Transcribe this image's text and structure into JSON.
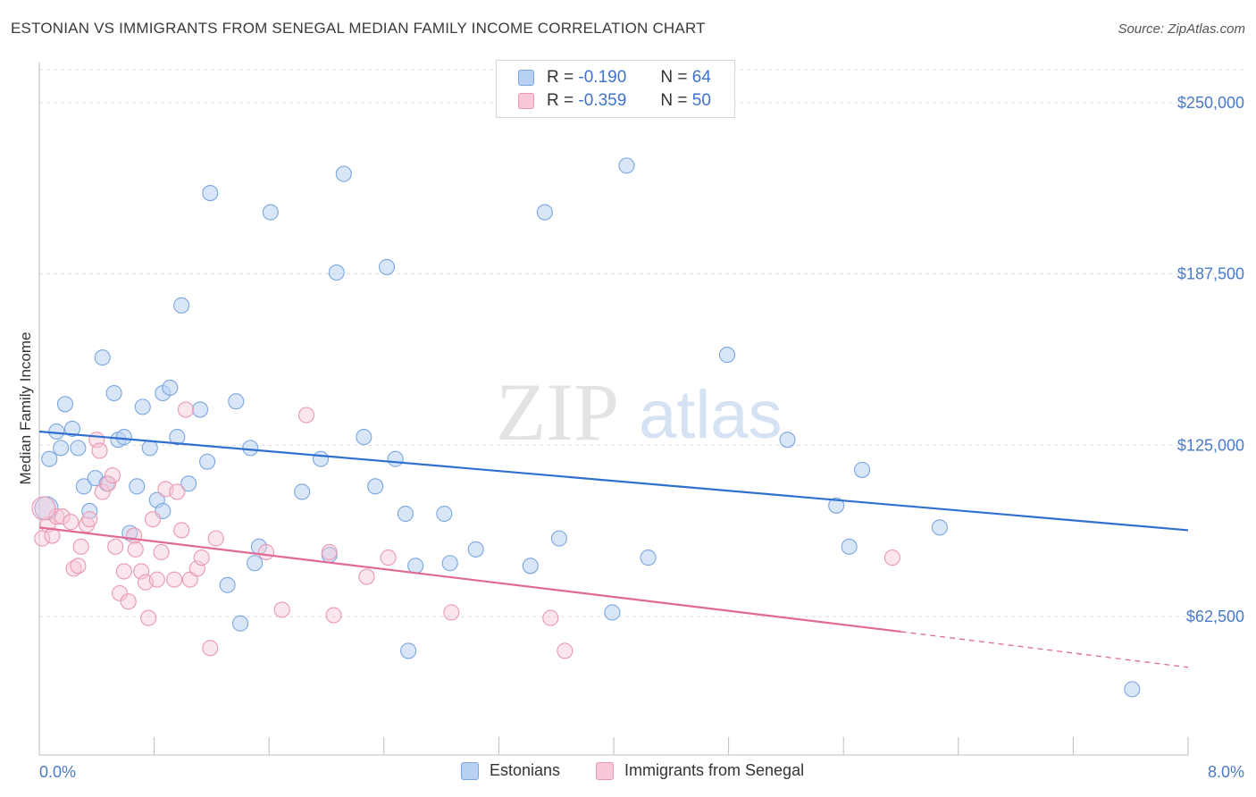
{
  "title": "ESTONIAN VS IMMIGRANTS FROM SENEGAL MEDIAN FAMILY INCOME CORRELATION CHART",
  "source": "Source: ZipAtlas.com",
  "watermark": {
    "zip": "ZIP",
    "atlas": "atlas"
  },
  "legend": {
    "r_label": "R =",
    "n_label": "N =",
    "rows": [
      {
        "r": "-0.190",
        "n": "64",
        "fill": "#b8d1f3",
        "stroke": "#7aa6e0"
      },
      {
        "r": "-0.359",
        "n": "50",
        "fill": "#f8c8d6",
        "stroke": "#e898b1"
      }
    ]
  },
  "bottom_legend": [
    {
      "label": "Estonians",
      "fill": "#b8d1f3",
      "stroke": "#7aa6e0"
    },
    {
      "label": "Immigrants from Senegal",
      "fill": "#f8c8d6",
      "stroke": "#e898b1"
    }
  ],
  "chart_data": {
    "type": "scatter",
    "title": "ESTONIAN VS IMMIGRANTS FROM SENEGAL MEDIAN FAMILY INCOME CORRELATION CHART",
    "xlabel": "",
    "ylabel": "Median Family Income",
    "xlim": [
      0,
      8
    ],
    "ylim": [
      12000,
      262000
    ],
    "x_tick_labels": [
      "0.0%",
      "8.0%"
    ],
    "y_ticks": [
      62500,
      125000,
      187500,
      250000
    ],
    "y_tick_labels": [
      "$62,500",
      "$125,000",
      "$187,500",
      "$250,000"
    ],
    "grid": "horizontal dashed",
    "series": [
      {
        "name": "Estonians",
        "color": "#7aa6e0",
        "fill": "#b8d1f3",
        "trend_color": "#2f6fd0",
        "trend": [
          [
            0.0,
            130000
          ],
          [
            8.0,
            94000
          ]
        ],
        "points": [
          [
            0.07,
            120000
          ],
          [
            0.12,
            130000
          ],
          [
            0.15,
            124000
          ],
          [
            0.18,
            140000
          ],
          [
            0.23,
            131000
          ],
          [
            0.27,
            124000
          ],
          [
            0.31,
            110000
          ],
          [
            0.35,
            101000
          ],
          [
            0.39,
            113000
          ],
          [
            0.44,
            157000
          ],
          [
            0.47,
            111000
          ],
          [
            0.52,
            144000
          ],
          [
            0.55,
            127000
          ],
          [
            0.59,
            128000
          ],
          [
            0.63,
            93000
          ],
          [
            0.68,
            110000
          ],
          [
            0.72,
            139000
          ],
          [
            0.77,
            124000
          ],
          [
            0.82,
            105000
          ],
          [
            0.86,
            144000
          ],
          [
            0.86,
            101000
          ],
          [
            0.91,
            146000
          ],
          [
            0.96,
            128000
          ],
          [
            0.99,
            176000
          ],
          [
            1.04,
            111000
          ],
          [
            1.12,
            138000
          ],
          [
            1.17,
            119000
          ],
          [
            1.19,
            217000
          ],
          [
            1.31,
            74000
          ],
          [
            1.37,
            141000
          ],
          [
            1.4,
            60000
          ],
          [
            1.47,
            124000
          ],
          [
            1.5,
            82000
          ],
          [
            1.53,
            88000
          ],
          [
            1.61,
            210000
          ],
          [
            1.83,
            108000
          ],
          [
            1.96,
            120000
          ],
          [
            2.02,
            85000
          ],
          [
            2.07,
            188000
          ],
          [
            2.12,
            224000
          ],
          [
            2.26,
            128000
          ],
          [
            2.34,
            110000
          ],
          [
            2.42,
            190000
          ],
          [
            2.48,
            120000
          ],
          [
            2.55,
            100000
          ],
          [
            2.57,
            50000
          ],
          [
            2.62,
            81000
          ],
          [
            2.82,
            100000
          ],
          [
            2.86,
            82000
          ],
          [
            3.04,
            87000
          ],
          [
            3.42,
            81000
          ],
          [
            3.52,
            210000
          ],
          [
            3.62,
            91000
          ],
          [
            3.99,
            64000
          ],
          [
            4.09,
            227000
          ],
          [
            4.24,
            84000
          ],
          [
            4.79,
            158000
          ],
          [
            5.21,
            127000
          ],
          [
            5.55,
            103000
          ],
          [
            5.64,
            88000
          ],
          [
            5.73,
            116000
          ],
          [
            6.27,
            95000
          ],
          [
            7.61,
            36000
          ],
          [
            0.05,
            102000
          ]
        ]
      },
      {
        "name": "Immigrants from Senegal",
        "color": "#e898b1",
        "fill": "#f8c8d6",
        "trend_color": "#e06a95",
        "trend": [
          [
            0.0,
            95000
          ],
          [
            6.0,
            57000
          ]
        ],
        "trend_dashed": [
          [
            6.0,
            57000
          ],
          [
            8.0,
            44000
          ]
        ],
        "points": [
          [
            0.02,
            91000
          ],
          [
            0.06,
            96000
          ],
          [
            0.09,
            92000
          ],
          [
            0.12,
            99000
          ],
          [
            0.16,
            99000
          ],
          [
            0.22,
            97000
          ],
          [
            0.24,
            80000
          ],
          [
            0.27,
            81000
          ],
          [
            0.29,
            88000
          ],
          [
            0.33,
            96000
          ],
          [
            0.35,
            98000
          ],
          [
            0.4,
            127000
          ],
          [
            0.42,
            123000
          ],
          [
            0.44,
            108000
          ],
          [
            0.48,
            111000
          ],
          [
            0.51,
            114000
          ],
          [
            0.53,
            88000
          ],
          [
            0.56,
            71000
          ],
          [
            0.59,
            79000
          ],
          [
            0.62,
            68000
          ],
          [
            0.66,
            92000
          ],
          [
            0.67,
            87000
          ],
          [
            0.71,
            79000
          ],
          [
            0.74,
            75000
          ],
          [
            0.76,
            62000
          ],
          [
            0.79,
            98000
          ],
          [
            0.82,
            76000
          ],
          [
            0.85,
            86000
          ],
          [
            0.88,
            109000
          ],
          [
            0.94,
            76000
          ],
          [
            0.96,
            108000
          ],
          [
            0.99,
            94000
          ],
          [
            1.02,
            138000
          ],
          [
            1.05,
            76000
          ],
          [
            1.1,
            80000
          ],
          [
            1.13,
            84000
          ],
          [
            1.19,
            51000
          ],
          [
            1.23,
            91000
          ],
          [
            1.58,
            86000
          ],
          [
            1.69,
            65000
          ],
          [
            1.86,
            136000
          ],
          [
            2.02,
            86000
          ],
          [
            2.05,
            63000
          ],
          [
            2.28,
            77000
          ],
          [
            2.43,
            84000
          ],
          [
            2.87,
            64000
          ],
          [
            3.56,
            62000
          ],
          [
            3.66,
            50000
          ],
          [
            5.94,
            84000
          ],
          [
            0.03,
            102000
          ]
        ]
      }
    ]
  }
}
